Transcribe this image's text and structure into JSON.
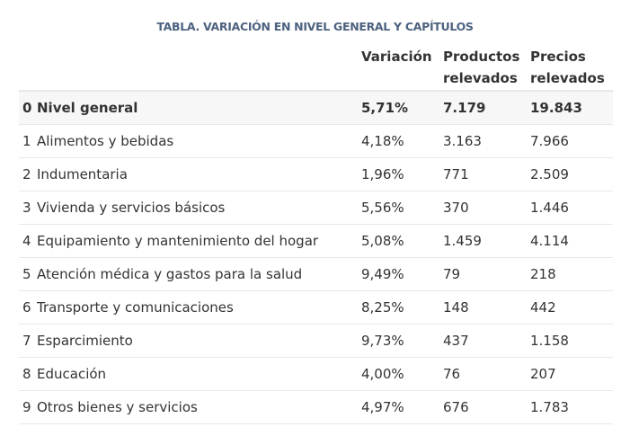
{
  "title": "TABLA. VARIACIÓN EN NIVEL GENERAL Y CAPÍTULOS",
  "headers": {
    "variacion": "Variación",
    "productos_line1": "Productos",
    "productos_line2": "relevados",
    "precios_line1": "Precios",
    "precios_line2": "relevados"
  },
  "rows": [
    {
      "num": "0",
      "name": "Nivel general",
      "variacion": "5,71%",
      "productos": "7.179",
      "precios": "19.843"
    },
    {
      "num": "1",
      "name": "Alimentos y bebidas",
      "variacion": "4,18%",
      "productos": "3.163",
      "precios": "7.966"
    },
    {
      "num": "2",
      "name": "Indumentaria",
      "variacion": "1,96%",
      "productos": "771",
      "precios": "2.509"
    },
    {
      "num": "3",
      "name": "Vivienda y servicios básicos",
      "variacion": "5,56%",
      "productos": "370",
      "precios": "1.446"
    },
    {
      "num": "4",
      "name": "Equipamiento y mantenimiento del hogar",
      "variacion": "5,08%",
      "productos": "1.459",
      "precios": "4.114"
    },
    {
      "num": "5",
      "name": "Atención médica y gastos para la salud",
      "variacion": "9,49%",
      "productos": "79",
      "precios": "218"
    },
    {
      "num": "6",
      "name": "Transporte y comunicaciones",
      "variacion": "8,25%",
      "productos": "148",
      "precios": "442"
    },
    {
      "num": "7",
      "name": "Esparcimiento",
      "variacion": "9,73%",
      "productos": "437",
      "precios": "1.158"
    },
    {
      "num": "8",
      "name": "Educación",
      "variacion": "4,00%",
      "productos": "76",
      "precios": "207"
    },
    {
      "num": "9",
      "name": "Otros bienes y servicios",
      "variacion": "4,97%",
      "productos": "676",
      "precios": "1.783"
    }
  ]
}
